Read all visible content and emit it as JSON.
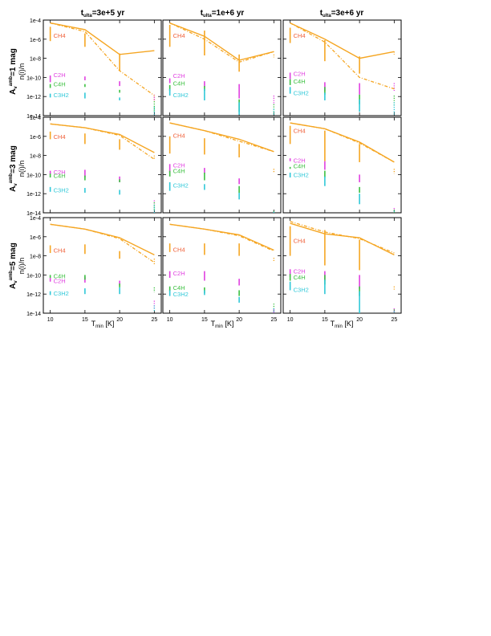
{
  "figure": {
    "col_titles": [
      {
        "main": "t",
        "sub": "ulta",
        "rest": "=3e+5 yr"
      },
      {
        "main": "t",
        "sub": "ulta",
        "rest": "=1e+6 yr"
      },
      {
        "main": "t",
        "sub": "ulta",
        "rest": "=3e+6 yr"
      }
    ],
    "row_labels": [
      {
        "main": "A",
        "sub": "v",
        "sup": "amb",
        "rest": "=1 mag"
      },
      {
        "main": "A",
        "sub": "v",
        "sup": "amb",
        "rest": "=3 mag"
      },
      {
        "main": "A",
        "sub": "v",
        "sup": "amb",
        "rest": "=5 mag"
      }
    ],
    "ylabel": "n(i)/n",
    "xlabel": {
      "main": "T",
      "sub": "min",
      "rest": " [K]"
    }
  },
  "colors": {
    "CH4_line": "#f5a623",
    "CH4_text": "#f0603a",
    "C2H": "#e040e0",
    "C4H": "#3cc040",
    "C3H2": "#30c8d8"
  },
  "chart_data": {
    "type": "line",
    "x": [
      10,
      15,
      20,
      25
    ],
    "xlim": [
      9,
      26
    ],
    "ylim_log10": [
      -14,
      -4
    ],
    "ytick_labels": [
      "1e-4",
      "1e-6",
      "1e-8",
      "1e-10",
      "1e-12",
      "1e-14"
    ],
    "xtick_labels": [
      "10",
      "15",
      "20",
      "25"
    ],
    "y_scale": "log",
    "panels": [
      {
        "row": 0,
        "col": 0,
        "solid": [
          -4.3,
          -5.0,
          -7.6,
          -7.2
        ],
        "dashed": [
          -4.3,
          -5.2,
          -9.3,
          -11.9
        ],
        "ch4_bars": [
          [
            -4.7,
            -6.2
          ],
          [
            -5.4,
            -6.8
          ],
          [
            -7.5,
            -9.3
          ],
          [
            -12.0,
            -12.5
          ]
        ],
        "c2h_bars": [
          [
            -9.8,
            -10.5
          ],
          [
            -9.9,
            -10.3
          ],
          [
            -10.4,
            -10.9
          ],
          [
            -11.8,
            -12.5
          ]
        ],
        "c4h_bars": [
          [
            -10.7,
            -11.1
          ],
          [
            -10.7,
            -11.0
          ],
          [
            -11.3,
            -11.6
          ],
          [
            -12.5,
            -13.6
          ]
        ],
        "c3h2_bars": [
          [
            -11.7,
            -12.1
          ],
          [
            -11.6,
            -12.2
          ],
          [
            -12.1,
            -12.4
          ],
          [
            -13.1,
            -14.0
          ]
        ],
        "labels": {
          "CH4": -5.6,
          "C2H": -9.7,
          "C4H": -10.7,
          "C3H2": -11.8
        }
      },
      {
        "row": 0,
        "col": 1,
        "solid": [
          -4.3,
          -5.7,
          -8.2,
          -7.3
        ],
        "dashed": [
          -4.3,
          -6.0,
          -8.4,
          -7.3
        ],
        "ch4_bars": [
          [
            -4.5,
            -6.8
          ],
          [
            -5.1,
            -7.7
          ],
          [
            -7.6,
            -9.4
          ],
          [
            -7.6,
            -7.9
          ]
        ],
        "c2h_bars": [
          [
            -10.1,
            -10.6
          ],
          [
            -10.4,
            -11.0
          ],
          [
            -10.7,
            -12.2
          ],
          [
            -11.9,
            -12.9
          ]
        ],
        "c4h_bars": [
          [
            -10.8,
            -11.4
          ],
          [
            -10.9,
            -11.4
          ],
          [
            -12.3,
            -13.6
          ],
          [
            -12.8,
            -13.8
          ]
        ],
        "c3h2_bars": [
          [
            -11.2,
            -11.9
          ],
          [
            -11.2,
            -12.4
          ],
          [
            -12.6,
            -13.9
          ],
          [
            -13.3,
            -14.0
          ]
        ],
        "labels": {
          "CH4": -5.6,
          "C2H": -9.8,
          "C4H": -10.6,
          "C3H2": -11.8
        }
      },
      {
        "row": 0,
        "col": 2,
        "solid": [
          -4.3,
          -6.0,
          -8.0,
          -7.3
        ],
        "dashed": [
          -4.3,
          -6.3,
          -10.0,
          -11.2
        ],
        "ch4_bars": [
          [
            -4.8,
            -6.4
          ],
          [
            -6.1,
            -8.3
          ],
          [
            -7.8,
            -9.6
          ],
          [
            -7.3,
            -7.6
          ]
        ],
        "c2h_bars": [
          [
            -9.5,
            -10.2
          ],
          [
            -10.5,
            -11.4
          ],
          [
            -10.6,
            -11.8
          ],
          [
            -10.6,
            -11.4
          ]
        ],
        "c4h_bars": [
          [
            -10.2,
            -10.8
          ],
          [
            -11.0,
            -11.8
          ],
          [
            -11.8,
            -12.8
          ],
          [
            -11.9,
            -13.1
          ]
        ],
        "c3h2_bars": [
          [
            -11.0,
            -11.7
          ],
          [
            -11.6,
            -12.4
          ],
          [
            -12.3,
            -13.6
          ],
          [
            -12.6,
            -13.9
          ]
        ],
        "labels": {
          "CH4": -5.6,
          "C2H": -9.6,
          "C4H": -10.4,
          "C3H2": -11.6
        }
      },
      {
        "row": 1,
        "col": 0,
        "solid": [
          -4.7,
          -5.1,
          -5.8,
          -7.7
        ],
        "dashed": [
          -4.7,
          -5.1,
          -5.9,
          -8.4
        ],
        "ch4_bars": [
          [
            -5.5,
            -6.3
          ],
          [
            -5.7,
            -6.8
          ],
          [
            -6.3,
            -7.4
          ],
          [
            -8.0,
            -8.4
          ]
        ],
        "c2h_bars": [
          [
            -9.6,
            -10.0
          ],
          [
            -9.5,
            -10.3
          ],
          [
            -10.2,
            -10.8
          ],
          [
            -12.7,
            -13.6
          ]
        ],
        "c4h_bars": [
          [
            -9.9,
            -10.3
          ],
          [
            -10.1,
            -10.6
          ],
          [
            -10.5,
            -10.8
          ],
          [
            -12.9,
            -13.8
          ]
        ],
        "c3h2_bars": [
          [
            -11.3,
            -11.8
          ],
          [
            -11.4,
            -11.9
          ],
          [
            -11.6,
            -12.1
          ],
          [
            -13.2,
            -14.0
          ]
        ],
        "labels": {
          "CH4": -6.0,
          "C2H": -9.7,
          "C4H": -10.1,
          "C3H2": -11.6
        }
      },
      {
        "row": 1,
        "col": 1,
        "solid": [
          -4.6,
          -5.4,
          -6.3,
          -7.6
        ],
        "dashed": [
          -4.6,
          -5.4,
          -6.5,
          -7.6
        ],
        "ch4_bars": [
          [
            -6.0,
            -7.8
          ],
          [
            -6.2,
            -7.9
          ],
          [
            -6.8,
            -8.2
          ],
          [
            -9.4,
            -9.8
          ]
        ],
        "c2h_bars": [
          [
            -8.9,
            -9.8
          ],
          [
            -9.3,
            -9.9
          ],
          [
            -10.4,
            -11.0
          ],
          [
            -13.8,
            -14.0
          ]
        ],
        "c4h_bars": [
          [
            -9.6,
            -10.2
          ],
          [
            -9.8,
            -10.6
          ],
          [
            -11.2,
            -11.9
          ],
          [
            -13.8,
            -14.0
          ]
        ],
        "c3h2_bars": [
          [
            -10.8,
            -11.7
          ],
          [
            -11.0,
            -11.6
          ],
          [
            -11.9,
            -12.6
          ],
          [
            -13.9,
            -14.0
          ]
        ],
        "labels": {
          "CH4": -5.9,
          "C2H": -9.0,
          "C4H": -9.6,
          "C3H2": -11.1
        }
      },
      {
        "row": 1,
        "col": 2,
        "solid": [
          -4.6,
          -5.2,
          -6.6,
          -8.7
        ],
        "dashed": [
          -4.6,
          -5.2,
          -6.7,
          -8.7
        ],
        "ch4_bars": [
          [
            -4.9,
            -6.8
          ],
          [
            -5.4,
            -8.6
          ],
          [
            -6.8,
            -8.7
          ],
          [
            -9.4,
            -9.9
          ]
        ],
        "c2h_bars": [
          [
            -8.3,
            -8.6
          ],
          [
            -8.6,
            -9.5
          ],
          [
            -10.0,
            -10.8
          ],
          [
            -13.5,
            -14.0
          ]
        ],
        "c4h_bars": [
          [
            -9.2,
            -9.4
          ],
          [
            -9.6,
            -10.3
          ],
          [
            -11.3,
            -11.9
          ],
          [
            -13.7,
            -14.0
          ]
        ],
        "c3h2_bars": [
          [
            -9.8,
            -10.3
          ],
          [
            -10.2,
            -11.2
          ],
          [
            -12.0,
            -13.1
          ],
          [
            -13.8,
            -14.0
          ]
        ],
        "labels": {
          "CH4": -5.4,
          "C2H": -8.5,
          "C4H": -9.1,
          "C3H2": -10.0
        }
      },
      {
        "row": 2,
        "col": 0,
        "solid": [
          -4.7,
          -5.2,
          -6.1,
          -7.9
        ],
        "dashed": [
          -4.7,
          -5.2,
          -6.2,
          -8.7
        ],
        "ch4_bars": [
          [
            -6.9,
            -7.7
          ],
          [
            -6.8,
            -7.8
          ],
          [
            -7.5,
            -8.3
          ],
          [
            -8.3,
            -8.9
          ]
        ],
        "c2h_bars": [
          [
            -10.3,
            -10.7
          ],
          [
            -10.2,
            -10.8
          ],
          [
            -10.6,
            -11.1
          ],
          [
            -12.7,
            -13.6
          ]
        ],
        "c4h_bars": [
          [
            -10.0,
            -10.3
          ],
          [
            -10.0,
            -10.5
          ],
          [
            -10.9,
            -11.3
          ],
          [
            -11.3,
            -11.8
          ]
        ],
        "c3h2_bars": [
          [
            -11.7,
            -12.1
          ],
          [
            -11.4,
            -12.0
          ],
          [
            -11.3,
            -12.0
          ],
          [
            -13.2,
            -13.9
          ]
        ],
        "labels": {
          "CH4": -7.4,
          "C2H": -10.6,
          "C4H": -10.1,
          "C3H2": -11.9
        }
      },
      {
        "row": 2,
        "col": 1,
        "solid": [
          -4.7,
          -5.2,
          -5.8,
          -7.4
        ],
        "dashed": [
          -4.7,
          -5.2,
          -5.9,
          -7.5
        ],
        "ch4_bars": [
          [
            -6.7,
            -7.6
          ],
          [
            -6.7,
            -7.9
          ],
          [
            -6.7,
            -8.0
          ],
          [
            -8.2,
            -8.6
          ]
        ],
        "c2h_bars": [
          [
            -9.6,
            -10.3
          ],
          [
            -9.6,
            -10.6
          ],
          [
            -10.4,
            -11.1
          ],
          [
            -13.6,
            -14.0
          ]
        ],
        "c4h_bars": [
          [
            -11.2,
            -11.7
          ],
          [
            -11.3,
            -11.9
          ],
          [
            -11.6,
            -12.2
          ],
          [
            -13.0,
            -13.8
          ]
        ],
        "c3h2_bars": [
          [
            -11.6,
            -12.2
          ],
          [
            -11.6,
            -12.1
          ],
          [
            -12.3,
            -12.9
          ],
          [
            -13.5,
            -14.0
          ]
        ],
        "labels": {
          "CH4": -7.3,
          "C2H": -9.8,
          "C4H": -11.3,
          "C3H2": -12.0
        }
      },
      {
        "row": 2,
        "col": 2,
        "solid": [
          -4.6,
          -5.7,
          -6.1,
          -7.9
        ],
        "dashed": [
          -4.4,
          -5.5,
          -6.2,
          -7.7
        ],
        "ch4_bars": [
          [
            -4.9,
            -8.0
          ],
          [
            -5.3,
            -9.0
          ],
          [
            -6.3,
            -9.5
          ],
          [
            -11.2,
            -11.6
          ]
        ],
        "c2h_bars": [
          [
            -9.4,
            -10.2
          ],
          [
            -9.6,
            -10.6
          ],
          [
            -10.0,
            -11.5
          ],
          [
            -13.5,
            -14.0
          ]
        ],
        "c4h_bars": [
          [
            -9.9,
            -10.6
          ],
          [
            -10.0,
            -11.0
          ],
          [
            -11.2,
            -12.2
          ],
          [
            -13.6,
            -14.0
          ]
        ],
        "c3h2_bars": [
          [
            -10.7,
            -11.6
          ],
          [
            -10.5,
            -12.0
          ],
          [
            -11.7,
            -14.0
          ],
          [
            -13.8,
            -14.0
          ]
        ],
        "labels": {
          "CH4": -6.4,
          "C2H": -9.6,
          "C4H": -10.2,
          "C3H2": -11.5
        }
      }
    ],
    "species_labels": [
      "CH4",
      "C2H",
      "C4H",
      "C3H2"
    ]
  }
}
